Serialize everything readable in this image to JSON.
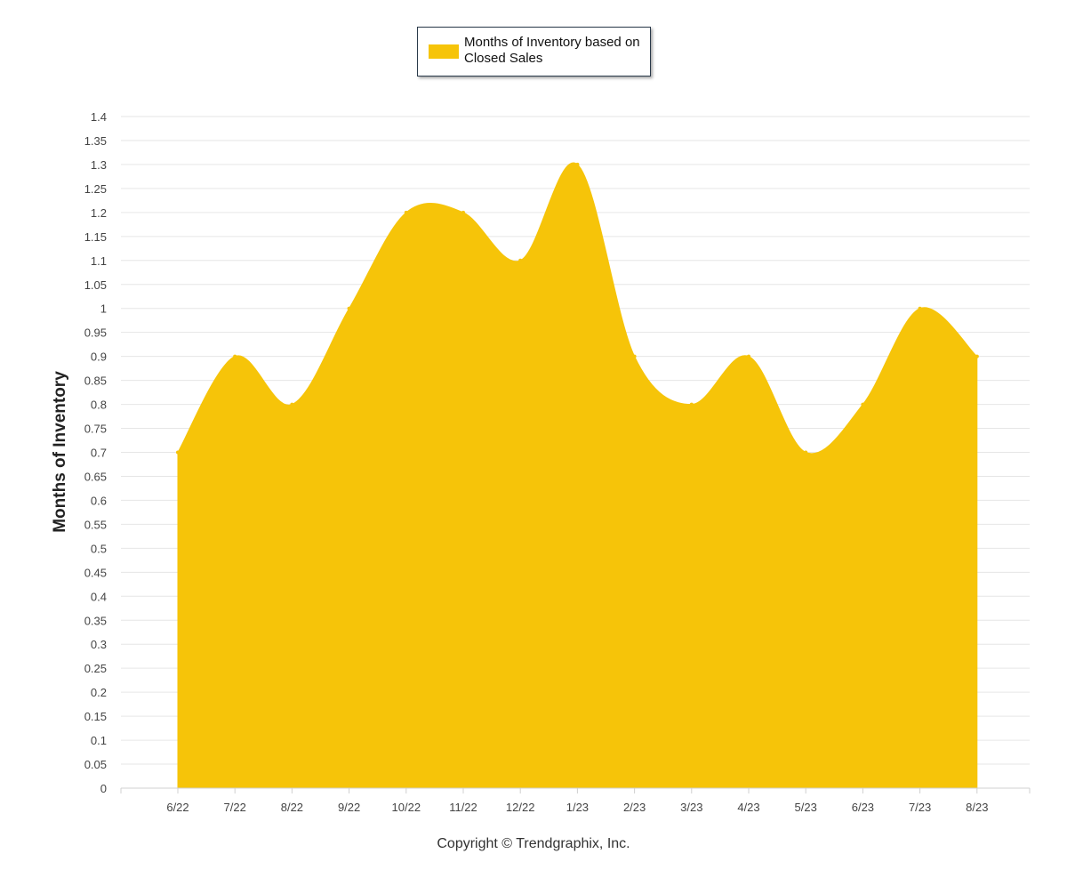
{
  "legend": {
    "label": "Months of Inventory based on Closed Sales"
  },
  "footer": {
    "copyright": "Copyright © Trendgraphix, Inc."
  },
  "chart_data": {
    "type": "area",
    "title": "",
    "xlabel": "",
    "ylabel": "Months of Inventory",
    "categories": [
      "6/22",
      "7/22",
      "8/22",
      "9/22",
      "10/22",
      "11/22",
      "12/22",
      "1/23",
      "2/23",
      "3/23",
      "4/23",
      "5/23",
      "6/23",
      "7/23",
      "8/23"
    ],
    "series": [
      {
        "name": "Months of Inventory based on Closed Sales",
        "values": [
          0.7,
          0.9,
          0.8,
          1.0,
          1.2,
          1.2,
          1.1,
          1.3,
          0.9,
          0.8,
          0.9,
          0.7,
          0.8,
          1.0,
          0.9
        ]
      }
    ],
    "ylim": [
      0,
      1.4
    ],
    "ytick_step": 0.05,
    "yticks": [
      "0",
      "0.05",
      "0.1",
      "0.15",
      "0.2",
      "0.25",
      "0.3",
      "0.35",
      "0.4",
      "0.45",
      "0.5",
      "0.55",
      "0.6",
      "0.65",
      "0.7",
      "0.75",
      "0.8",
      "0.85",
      "0.9",
      "0.95",
      "1",
      "1.05",
      "1.1",
      "1.15",
      "1.2",
      "1.25",
      "1.3",
      "1.35",
      "1.4"
    ],
    "grid": true,
    "legend_position": "top-center",
    "colors": {
      "fill": "#F6C409",
      "grid": "#E6E6E6",
      "axis_text": "#444444",
      "ylabel": "#222222"
    }
  }
}
